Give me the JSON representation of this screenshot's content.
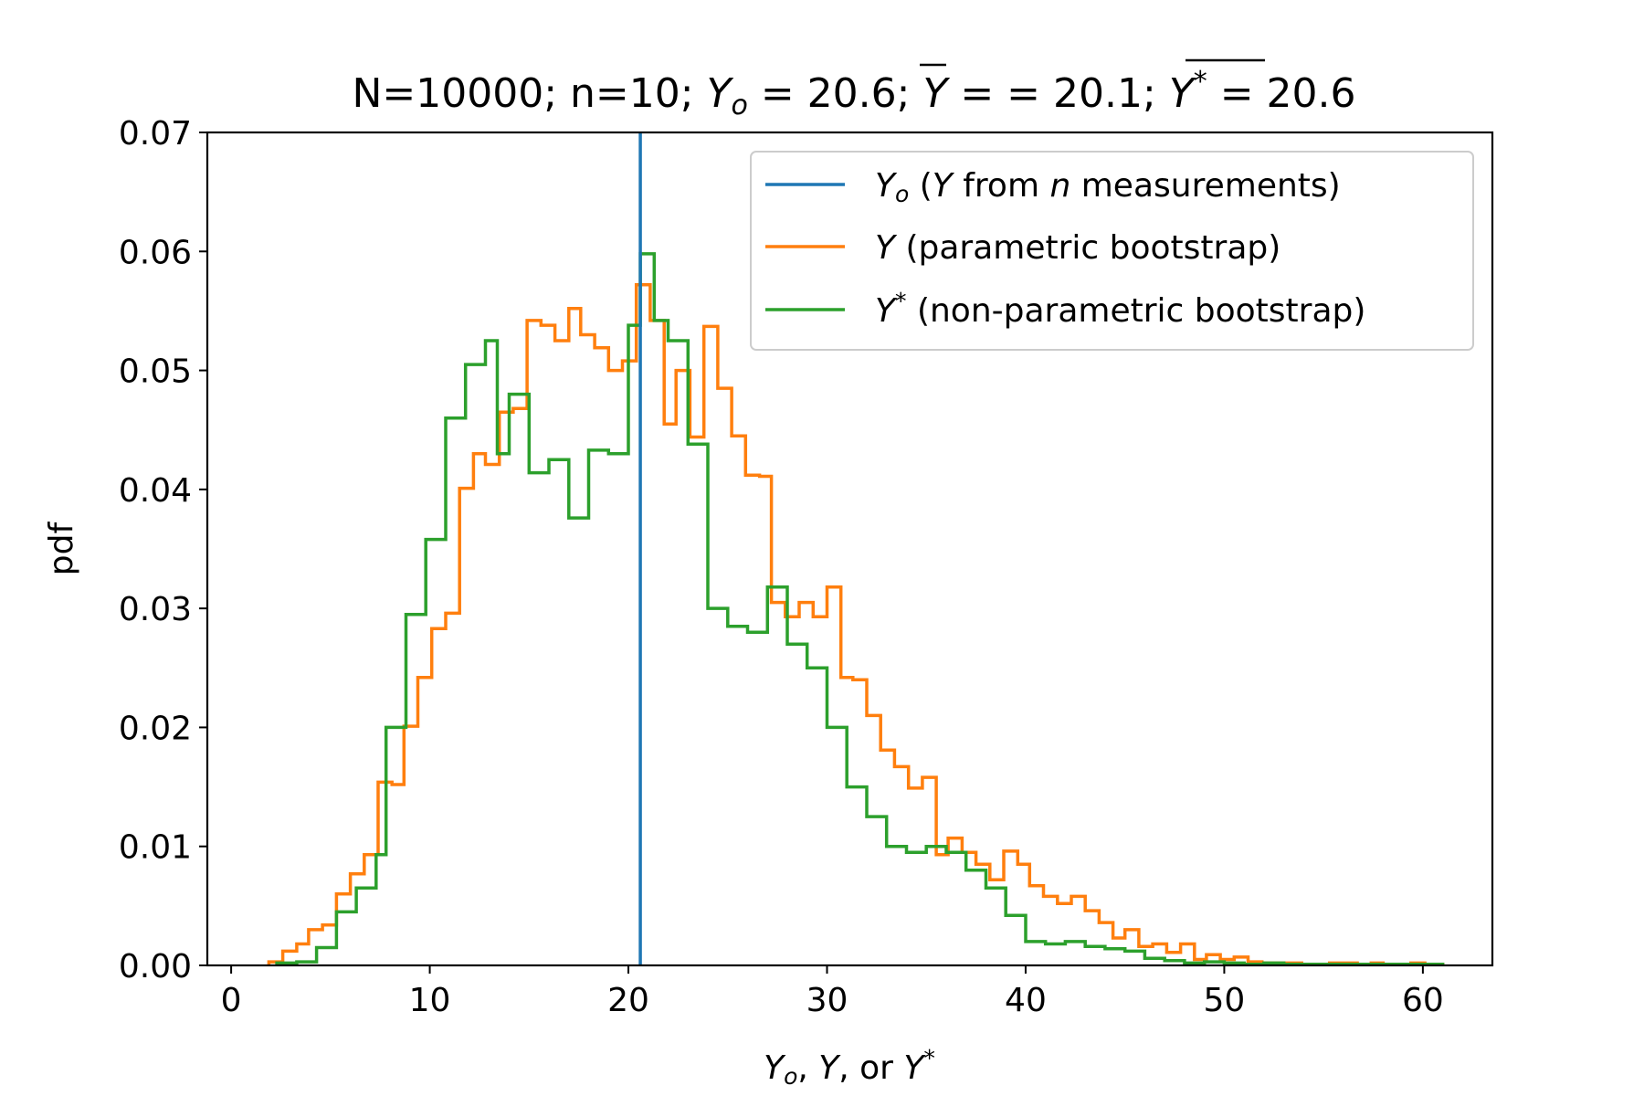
{
  "chart_data": {
    "type": "histogram-step",
    "title": {
      "prefix": "N=10000; n=10; ",
      "yo_sym": "Y",
      "yo_sub": "o",
      "yo_val": " = 20.6; ",
      "ybar_sym": "Y",
      "ybar_val": " =  = 20.1; ",
      "ystar_sym": "Y",
      "ystar_sup": "*",
      "ystar_val": " = 20.6"
    },
    "xlabel": {
      "a": "Y",
      "a_sub": "o",
      "b": ", ",
      "c": "Y",
      "d": ", or ",
      "e": "Y",
      "e_sup": "*"
    },
    "ylabel": "pdf",
    "xlim": [
      -1.2,
      63.5
    ],
    "ylim": [
      0,
      0.07
    ],
    "x_ticks": [
      0,
      10,
      20,
      30,
      40,
      50,
      60
    ],
    "y_ticks": [
      0.0,
      0.01,
      0.02,
      0.03,
      0.04,
      0.05,
      0.06,
      0.07
    ],
    "y_tick_labels": [
      "0.00",
      "0.01",
      "0.02",
      "0.03",
      "0.04",
      "0.05",
      "0.06",
      "0.07"
    ],
    "grid": false,
    "legend_position": "upper right",
    "vline": {
      "x": 20.6,
      "color": "#1f77b4"
    },
    "series": [
      {
        "key": "parametric",
        "color": "#ff7f0e",
        "legend_sym": "Y",
        "legend_text": " (parametric bootstrap)",
        "edges": [
          1.9,
          2.6,
          3.3,
          3.9,
          4.6,
          5.3,
          6.0,
          6.7,
          7.4,
          8.1,
          8.7,
          9.4,
          10.1,
          10.8,
          11.5,
          12.2,
          12.8,
          13.5,
          14.2,
          14.9,
          15.6,
          16.3,
          17.0,
          17.6,
          18.3,
          19.0,
          19.7,
          20.4,
          21.1,
          21.8,
          22.4,
          23.1,
          23.8,
          24.5,
          25.2,
          25.9,
          26.6,
          27.2,
          27.9,
          28.6,
          29.3,
          30.0,
          30.7,
          31.3,
          32.0,
          32.7,
          33.4,
          34.1,
          34.8,
          35.5,
          36.1,
          36.8,
          37.5,
          38.2,
          38.9,
          39.6,
          40.2,
          40.9,
          41.6,
          42.3,
          43.0,
          43.7,
          44.4,
          45.0,
          45.7,
          46.4,
          47.1,
          47.8,
          48.5,
          49.1,
          49.8,
          50.5,
          51.2,
          51.9,
          52.6,
          53.3,
          53.9,
          54.6,
          55.3,
          56.0,
          56.7,
          57.4,
          58.0,
          58.7,
          59.4,
          60.1,
          61.0
        ],
        "values": [
          0.0003,
          0.0012,
          0.0018,
          0.003,
          0.0034,
          0.006,
          0.0077,
          0.0093,
          0.0154,
          0.0152,
          0.0201,
          0.0242,
          0.0283,
          0.0296,
          0.0401,
          0.043,
          0.0421,
          0.0465,
          0.0468,
          0.0542,
          0.0538,
          0.0525,
          0.0552,
          0.053,
          0.0519,
          0.05,
          0.0508,
          0.0572,
          0.0542,
          0.0455,
          0.05,
          0.0444,
          0.0537,
          0.0485,
          0.0445,
          0.0412,
          0.0411,
          0.0305,
          0.0293,
          0.0305,
          0.0293,
          0.0318,
          0.0242,
          0.024,
          0.021,
          0.0181,
          0.0167,
          0.0149,
          0.0158,
          0.0093,
          0.0107,
          0.0095,
          0.0085,
          0.0072,
          0.0096,
          0.0085,
          0.0067,
          0.0058,
          0.0052,
          0.0058,
          0.0046,
          0.0036,
          0.0023,
          0.003,
          0.0016,
          0.0018,
          0.0011,
          0.0018,
          0.0005,
          0.0009,
          0.0005,
          0.0007,
          0.0003,
          0.0002,
          0.0002,
          0.0002,
          0.0001,
          0.0001,
          0.0002,
          0.0002,
          0.0001,
          0.0002,
          0.0001,
          0.0001,
          0.0002,
          0.0001
        ]
      },
      {
        "key": "nonparametric",
        "color": "#2ca02c",
        "legend_sym": "Y",
        "legend_sup": "*",
        "legend_text": " (non-parametric bootstrap)",
        "edges": [
          2.3,
          3.3,
          4.3,
          5.3,
          6.3,
          7.3,
          7.8,
          8.8,
          9.8,
          10.8,
          11.8,
          12.8,
          13.4,
          14.0,
          15.0,
          16.0,
          17.0,
          18.0,
          19.0,
          20.0,
          20.6,
          21.3,
          22.0,
          23.0,
          24.0,
          25.0,
          26.0,
          27.0,
          28.0,
          29.0,
          30.0,
          31.0,
          32.0,
          33.0,
          34.0,
          35.0,
          36.0,
          37.0,
          38.0,
          39.0,
          40.0,
          41.0,
          42.0,
          43.0,
          44.0,
          45.0,
          46.0,
          47.0,
          48.0,
          49.0,
          50.0,
          51.0,
          52.0,
          53.0,
          54.0,
          55.0,
          56.0,
          57.0,
          58.0,
          59.0,
          60.0,
          61.0
        ],
        "values": [
          0.0002,
          0.0003,
          0.0015,
          0.0045,
          0.0065,
          0.0093,
          0.02,
          0.0295,
          0.0358,
          0.046,
          0.0505,
          0.0525,
          0.043,
          0.048,
          0.0414,
          0.0425,
          0.0376,
          0.0433,
          0.043,
          0.0538,
          0.0598,
          0.0542,
          0.0525,
          0.0438,
          0.03,
          0.0285,
          0.028,
          0.0318,
          0.027,
          0.025,
          0.02,
          0.015,
          0.0125,
          0.01,
          0.0095,
          0.01,
          0.0095,
          0.008,
          0.0065,
          0.0042,
          0.002,
          0.0018,
          0.002,
          0.0016,
          0.0014,
          0.0012,
          0.0006,
          0.0004,
          0.0002,
          0.0003,
          0.0002,
          0.0001,
          0.0002,
          0.0001,
          0.0001,
          0.0001,
          0.0001,
          0.0001,
          0.0001,
          0.0001,
          0.0001
        ]
      }
    ],
    "legend": {
      "yo_sym": "Y",
      "yo_sub": "o",
      "yo_text_a": " (",
      "yo_text_b": "Y",
      "yo_text_c": " from ",
      "yo_text_d": "n",
      "yo_text_e": " measurements)"
    }
  }
}
